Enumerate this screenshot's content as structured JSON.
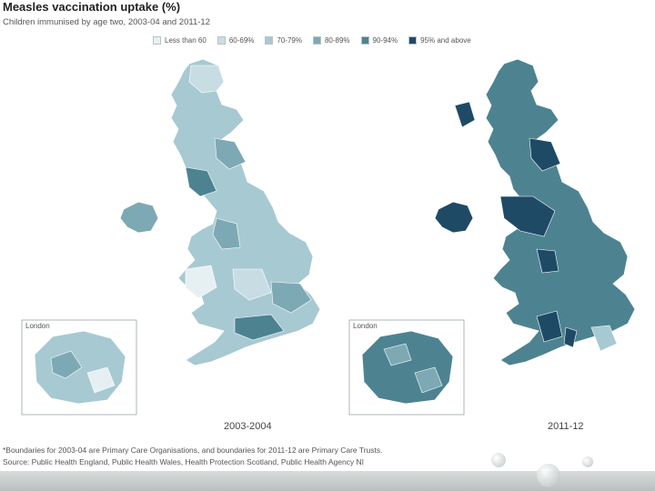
{
  "title": "Measles vaccination uptake (%)",
  "subtitle": "Children immunised by age two, 2003-04 and 2011-12",
  "legend": [
    {
      "label": "Less than 60",
      "color": "#e6f0f2"
    },
    {
      "label": "60-69%",
      "color": "#c7dde3"
    },
    {
      "label": "70-79%",
      "color": "#a7c9d2"
    },
    {
      "label": "80-89%",
      "color": "#7da9b5"
    },
    {
      "label": "90-94%",
      "color": "#4d8391"
    },
    {
      "label": "95% and above",
      "color": "#1f4a66"
    }
  ],
  "maps": [
    {
      "year": "2003-2004",
      "inset_label": "London"
    },
    {
      "year": "2011-12",
      "inset_label": "London"
    }
  ],
  "footnote": "*Boundaries for 2003-04 are Primary Care Organisations, and boundaries for 2011-12 are Primary Care Trusts.",
  "source": "Source: Public Health England, Public Health Wales, Health Protection Scotland, Public Health Agency NI"
}
